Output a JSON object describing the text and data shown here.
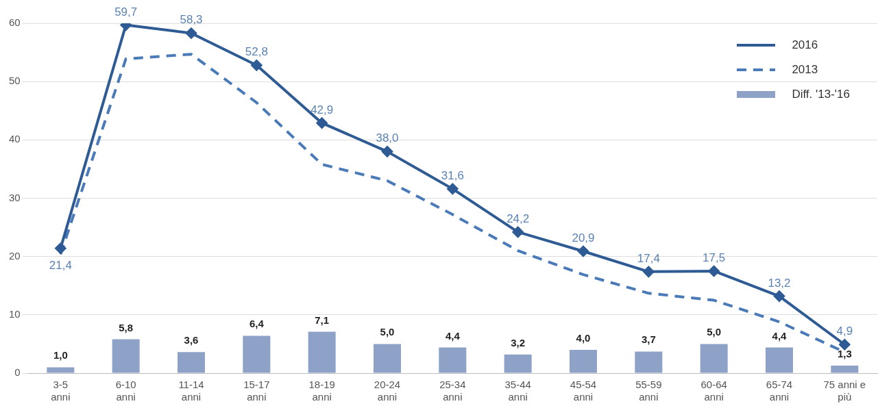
{
  "chart_data": {
    "type": "line",
    "categories": [
      "3-5 anni",
      "6-10 anni",
      "11-14 anni",
      "15-17 anni",
      "18-19 anni",
      "20-24 anni",
      "25-34 anni",
      "35-44 anni",
      "45-54 anni",
      "55-59 anni",
      "60-64 anni",
      "65-74 anni",
      "75 anni e più"
    ],
    "series": [
      {
        "name": "2016",
        "color": "#2f5b95",
        "marker": "diamond",
        "line_style": "solid",
        "values": [
          21.4,
          59.7,
          58.3,
          52.8,
          42.9,
          38.0,
          31.6,
          24.2,
          20.9,
          17.4,
          17.5,
          13.2,
          4.9
        ],
        "value_labels": [
          "21,4",
          "59,7",
          "58,3",
          "52,8",
          "42,9",
          "38,0",
          "31,6",
          "24,2",
          "20,9",
          "17,4",
          "17,5",
          "13,2",
          "4,9"
        ]
      },
      {
        "name": "2013",
        "color": "#4a7ab8",
        "marker": "none",
        "line_style": "dashed",
        "values": [
          20.4,
          53.9,
          54.7,
          46.4,
          35.8,
          33.0,
          27.2,
          21.0,
          16.9,
          13.7,
          12.5,
          8.8,
          3.6
        ]
      },
      {
        "name": "Diff. '13-'16",
        "type": "bar",
        "color": "#8ea2c8",
        "values": [
          1.0,
          5.8,
          3.6,
          6.4,
          7.1,
          5.0,
          4.4,
          3.2,
          4.0,
          3.7,
          5.0,
          4.4,
          1.3
        ],
        "value_labels": [
          "1,0",
          "5,8",
          "3,6",
          "6,4",
          "7,1",
          "5,0",
          "4,4",
          "3,2",
          "4,0",
          "3,7",
          "5,0",
          "4,4",
          "1,3"
        ]
      }
    ],
    "ylim": [
      0,
      60
    ],
    "yticks": [
      0,
      10,
      20,
      30,
      40,
      50,
      60
    ],
    "grid": "y",
    "legend": "top right"
  }
}
